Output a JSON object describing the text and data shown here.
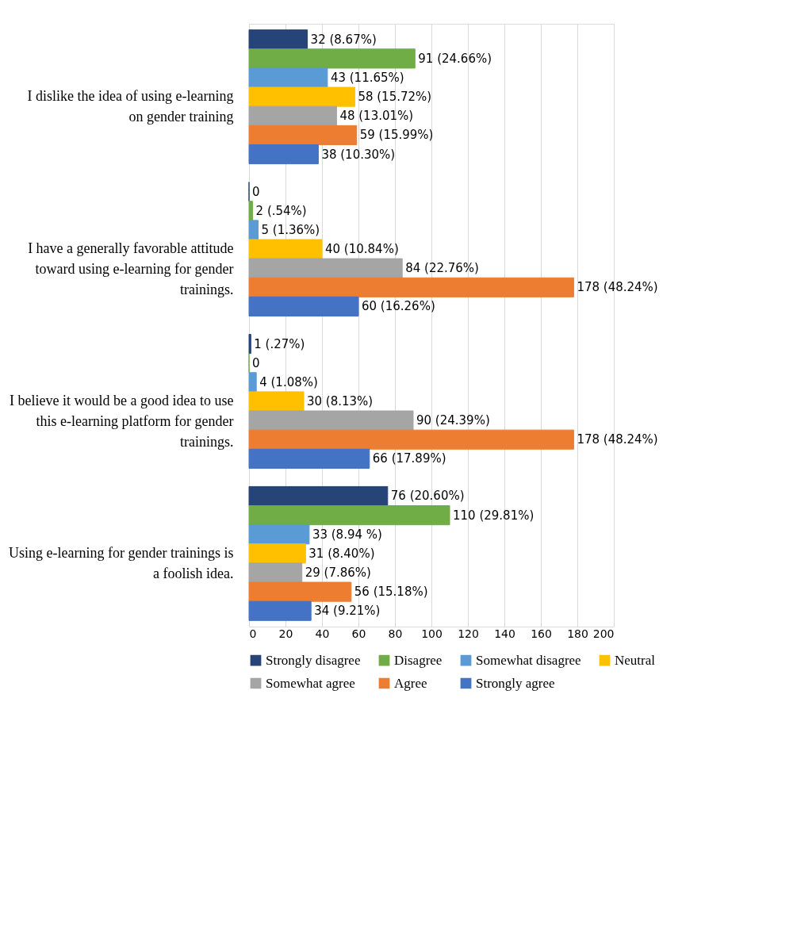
{
  "chart_data": {
    "type": "bar",
    "orientation": "horizontal",
    "categories": [
      "I dislike the idea of using e-learning on gender training",
      "I have a generally favorable attitude toward using e-learning for gender trainings.",
      "I believe it would be a good idea to use this e-learning platform for gender trainings.",
      "Using e-learning for gender trainings is a foolish idea."
    ],
    "series": [
      {
        "name": "Strongly disagree",
        "color": "#264478",
        "values": [
          32,
          0,
          1,
          76
        ],
        "value_labels": [
          "32 (8.67%)",
          "0",
          "1 (.27%)",
          "76 (20.60%)"
        ]
      },
      {
        "name": "Disagree",
        "color": "#70ad47",
        "values": [
          91,
          2,
          0,
          110
        ],
        "value_labels": [
          "91 (24.66%)",
          "2 (.54%)",
          "0",
          "110 (29.81%)"
        ]
      },
      {
        "name": "Somewhat disagree",
        "color": "#5b9bd5",
        "values": [
          43,
          5,
          4,
          33
        ],
        "value_labels": [
          "43 (11.65%)",
          "5 (1.36%)",
          "4 (1.08%)",
          "33 (8.94 %)"
        ]
      },
      {
        "name": "Neutral",
        "color": "#ffc000",
        "values": [
          58,
          40,
          30,
          31
        ],
        "value_labels": [
          "58 (15.72%)",
          "40 (10.84%)",
          "30 (8.13%)",
          "31 (8.40%)"
        ]
      },
      {
        "name": "Somewhat agree",
        "color": "#a5a5a5",
        "values": [
          48,
          84,
          90,
          29
        ],
        "value_labels": [
          "48 (13.01%)",
          "84 (22.76%)",
          "90 (24.39%)",
          "29 (7.86%)"
        ]
      },
      {
        "name": "Agree",
        "color": "#ed7d31",
        "values": [
          59,
          178,
          178,
          56
        ],
        "value_labels": [
          "59 (15.99%)",
          "178 (48.24%)",
          "178 (48.24%)",
          "56 (15.18%)"
        ]
      },
      {
        "name": "Strongly agree",
        "color": "#4472c4",
        "values": [
          38,
          60,
          66,
          34
        ],
        "value_labels": [
          "38 (10.30%)",
          "60 (16.26%)",
          "66 (17.89%)",
          "34 (9.21%)"
        ]
      }
    ],
    "xlim": [
      0,
      200
    ],
    "xticks": [
      0,
      20,
      40,
      60,
      80,
      100,
      120,
      140,
      160,
      180,
      200
    ],
    "grid": "x",
    "legend": "bottom"
  }
}
